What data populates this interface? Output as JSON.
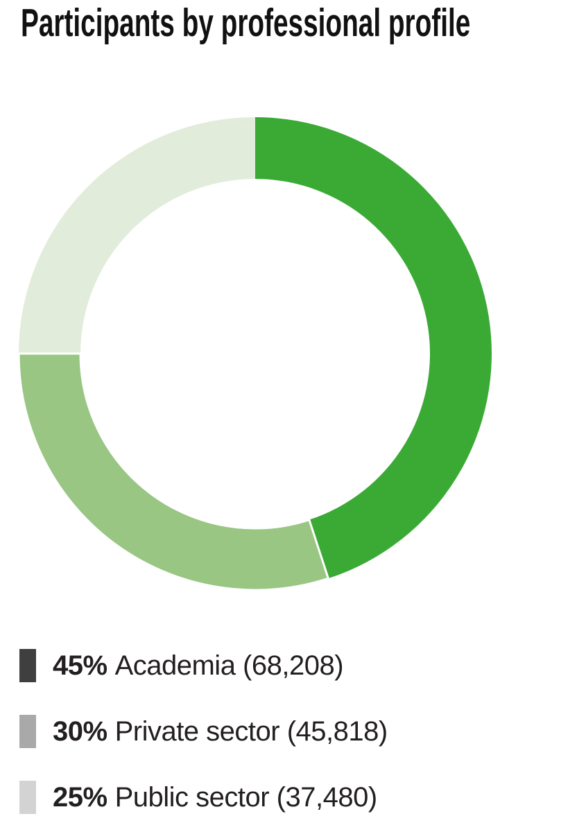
{
  "title": "Participants by professional profile",
  "colors": {
    "background": "#ffffff",
    "title_text": "#111111",
    "legend_text": "#231f20",
    "slice_gap": "#ffffff"
  },
  "chart_data": {
    "type": "pie",
    "subtype": "donut",
    "title": "Participants by professional profile",
    "start_angle_deg": 0,
    "direction": "clockwise",
    "legend_position": "bottom-left",
    "segments": [
      {
        "label": "Academia",
        "pct": 45,
        "count": 68208,
        "pct_label": "45%",
        "rest_label": "Academia (68,208)",
        "slice_color": "#3aaa35",
        "legend_swatch_color": "#3f3f3f"
      },
      {
        "label": "Private sector",
        "pct": 30,
        "count": 45818,
        "pct_label": "30%",
        "rest_label": "Private sector (45,818)",
        "slice_color": "#99c683",
        "legend_swatch_color": "#a9a9a9"
      },
      {
        "label": "Public sector",
        "pct": 25,
        "count": 37480,
        "pct_label": "25%",
        "rest_label": "Public sector (37,480)",
        "slice_color": "#e2ecda",
        "legend_swatch_color": "#d3d3d3"
      }
    ]
  }
}
